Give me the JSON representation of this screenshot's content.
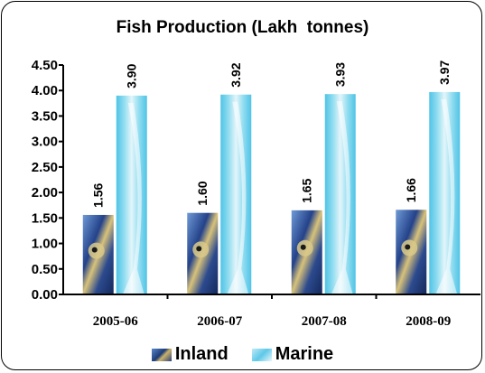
{
  "chart_data": {
    "type": "bar",
    "title": "Fish Production (Lakh  tonnes)",
    "categories": [
      "2005-06",
      "2006-07",
      "2007-08",
      "2008-09"
    ],
    "series": [
      {
        "name": "Inland",
        "values": [
          1.56,
          1.6,
          1.65,
          1.66
        ],
        "labels": [
          "1.56",
          "1.60",
          "1.65",
          "1.66"
        ]
      },
      {
        "name": "Marine",
        "values": [
          3.9,
          3.92,
          3.93,
          3.97
        ],
        "labels": [
          "3.90",
          "3.92",
          "3.93",
          "3.97"
        ]
      }
    ],
    "ylim": [
      0,
      4.5
    ],
    "yticks": [
      "0.00",
      "0.50",
      "1.00",
      "1.50",
      "2.00",
      "2.50",
      "3.00",
      "3.50",
      "4.00",
      "4.50"
    ],
    "grid": false,
    "legend": "bottom"
  }
}
